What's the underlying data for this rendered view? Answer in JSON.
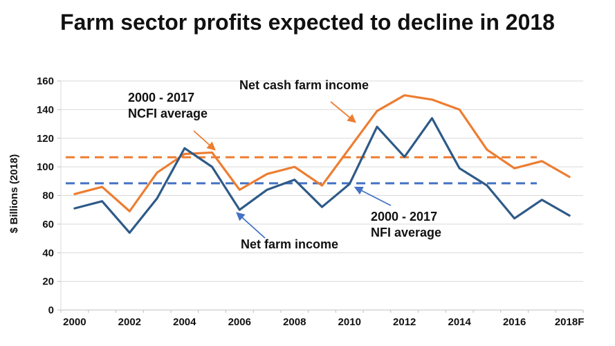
{
  "title": "Farm sector profits expected to decline in 2018",
  "chart_data": {
    "type": "line",
    "x": [
      "2000",
      "2001",
      "2002",
      "2003",
      "2004",
      "2005",
      "2006",
      "2007",
      "2008",
      "2009",
      "2010",
      "2011",
      "2012",
      "2013",
      "2014",
      "2015",
      "2016",
      "2017",
      "2018F"
    ],
    "x_tick_labels": [
      "2000",
      "2002",
      "2004",
      "2006",
      "2008",
      "2010",
      "2012",
      "2014",
      "2016",
      "2018F"
    ],
    "series": [
      {
        "name": "Net cash farm income",
        "color": "#ED7D31",
        "values": [
          81,
          86,
          69,
          96,
          109,
          110,
          84,
          95,
          100,
          87,
          113,
          139,
          150,
          147,
          140,
          112,
          99,
          104,
          93
        ]
      },
      {
        "name": "Net farm income",
        "color": "#2E5A87",
        "values": [
          71,
          76,
          54,
          78,
          113,
          100,
          70,
          84,
          91,
          72,
          88,
          128,
          107,
          134,
          99,
          87,
          64,
          77,
          66
        ]
      }
    ],
    "reference_lines": [
      {
        "name": "NCFI average",
        "label_line1": "2000 - 2017",
        "label_line2": "NCFI average",
        "value": 106.7,
        "color": "#ED7D31",
        "style": "dashed"
      },
      {
        "name": "NFI average",
        "label_line1": "2000 - 2017",
        "label_line2": "NFI average",
        "value": 88.5,
        "color": "#4472C4",
        "style": "dashed"
      }
    ],
    "ylabel": "$ Billions (2018)",
    "ylim": [
      0,
      160
    ],
    "ytick_step": 20,
    "yticks": [
      0,
      20,
      40,
      60,
      80,
      100,
      120,
      140,
      160
    ],
    "grid": true,
    "legend_position": "none"
  },
  "colors": {
    "grid": "#D9D9D9",
    "axis": "#BFBFBF",
    "text": "#111111"
  }
}
